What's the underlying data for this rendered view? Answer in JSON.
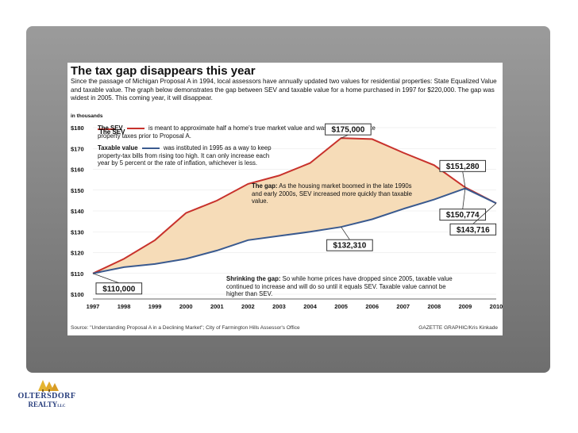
{
  "slide": {
    "headline": "The tax gap disappears this year",
    "intro": "Since the passage of Michigan Proposal A in 1994, local assessors have annually updated two values for residential properties: State Equalized Value and taxable value. The graph below demonstrates the gap between SEV and taxable value for a home purchased in 1997 for $220,000. The gap was widest in 2005. This coming year, it will disappear.",
    "units": "in thousands",
    "source": "Source: \"Understanding Proposal A in a Declining Market\"; City of Farmington Hills Assessor's Office",
    "credit": "GAZETTE GRAPHIC/Kris Kinkade",
    "logo": {
      "line1": "OLTERSDORF",
      "line2": "REALTY",
      "suffix": "LLC"
    }
  },
  "chart_data": {
    "type": "line",
    "title": "The tax gap disappears this year",
    "ylabel": "in thousands",
    "x": [
      "1997",
      "1998",
      "1999",
      "2000",
      "2001",
      "2002",
      "2003",
      "2004",
      "2005",
      "2006",
      "2007",
      "2008",
      "2009",
      "2010"
    ],
    "ylim": [
      100,
      180
    ],
    "y_ticks": [
      "$100",
      "$110",
      "$120",
      "$130",
      "$140",
      "$150",
      "$160",
      "$170",
      "$180"
    ],
    "series": [
      {
        "name": "SEV",
        "color": "#c8322c",
        "values": [
          110,
          117,
          126,
          139,
          145,
          153,
          157,
          163,
          175,
          174.5,
          168,
          162,
          151.3,
          143.7
        ]
      },
      {
        "name": "Taxable value",
        "color": "#3a5a8f",
        "values": [
          110,
          113,
          114.5,
          117,
          121,
          126,
          128,
          130,
          132.3,
          136,
          141,
          145.5,
          150.8,
          143.7
        ]
      }
    ],
    "fill_between": {
      "color": "#f6dcb8"
    },
    "legend": {
      "sev_label": "The SEV",
      "sev_text": "is meant to approximate half a home's true market value and was used to calculate property taxes prior to Proposal A.",
      "tax_label": "Taxable value",
      "tax_text": "was instituted in 1995 as a way to keep property-tax bills from rising too high. It can only increase each year by 5 percent or the rate of inflation, whichever is less."
    },
    "callouts": [
      {
        "text": "$110,000"
      },
      {
        "text": "$175,000"
      },
      {
        "text": "$132,310"
      },
      {
        "text": "$151,280"
      },
      {
        "text": "$150,774"
      },
      {
        "text": "$143,716"
      }
    ],
    "annotations": {
      "gap_label": "The gap:",
      "gap_text": "As the housing market boomed in the late 1990s and early 2000s, SEV increased more quickly than taxable value.",
      "shrink_label": "Shrinking the gap:",
      "shrink_text": "So while home prices have dropped since 2005, taxable value continued to increase and will do so until it equals SEV. Taxable value cannot be higher than SEV."
    }
  }
}
